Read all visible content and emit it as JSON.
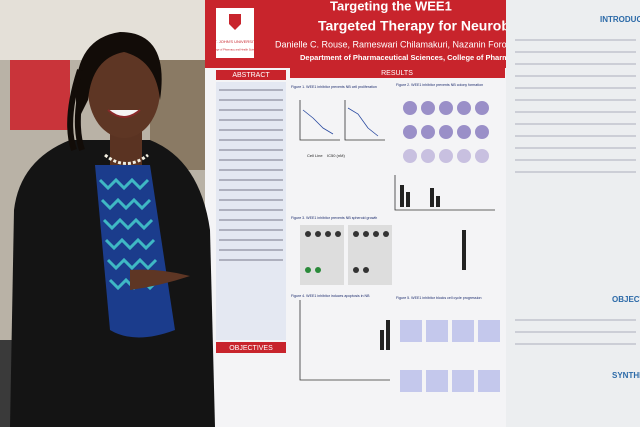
{
  "poster": {
    "title_line_1": "Targeting the WEE1",
    "title_line_2": "Targeted Therapy for Neuroblaston",
    "authors": "Danielle C. Rouse, Rameswari Chilamakuri, Nazanin Foroutan, Saur",
    "affiliation": "Department of Pharmaceutical Sciences, College of Pharmacy and Health",
    "logo_name": "ST. JOHN'S UNIVERSITY",
    "logo_sub": "College of Pharmacy and Health Sciences",
    "sections": {
      "abstract": "ABSTRACT",
      "results": "RESULTS",
      "objectives": "OBJECTIVES"
    },
    "figures": [
      "Figure 1. WEE1 inhibitor prevents NB cell proliferation",
      "Figure 2. WEE1 inhibitor prevents NB colony formation",
      "Figure 3. WEE1 inhibitor prevents NB spheroid growth",
      "Figure 4. WEE1 inhibitor induces apoptosis in NB",
      "Figure 5. WEE1 inhibitor blocks cell cycle progression"
    ],
    "table_headers": [
      "Cell Line",
      "IC50 (nM)"
    ],
    "right_panel": [
      "INTRODUC",
      "OBJECTI",
      "SYNTHE"
    ]
  }
}
